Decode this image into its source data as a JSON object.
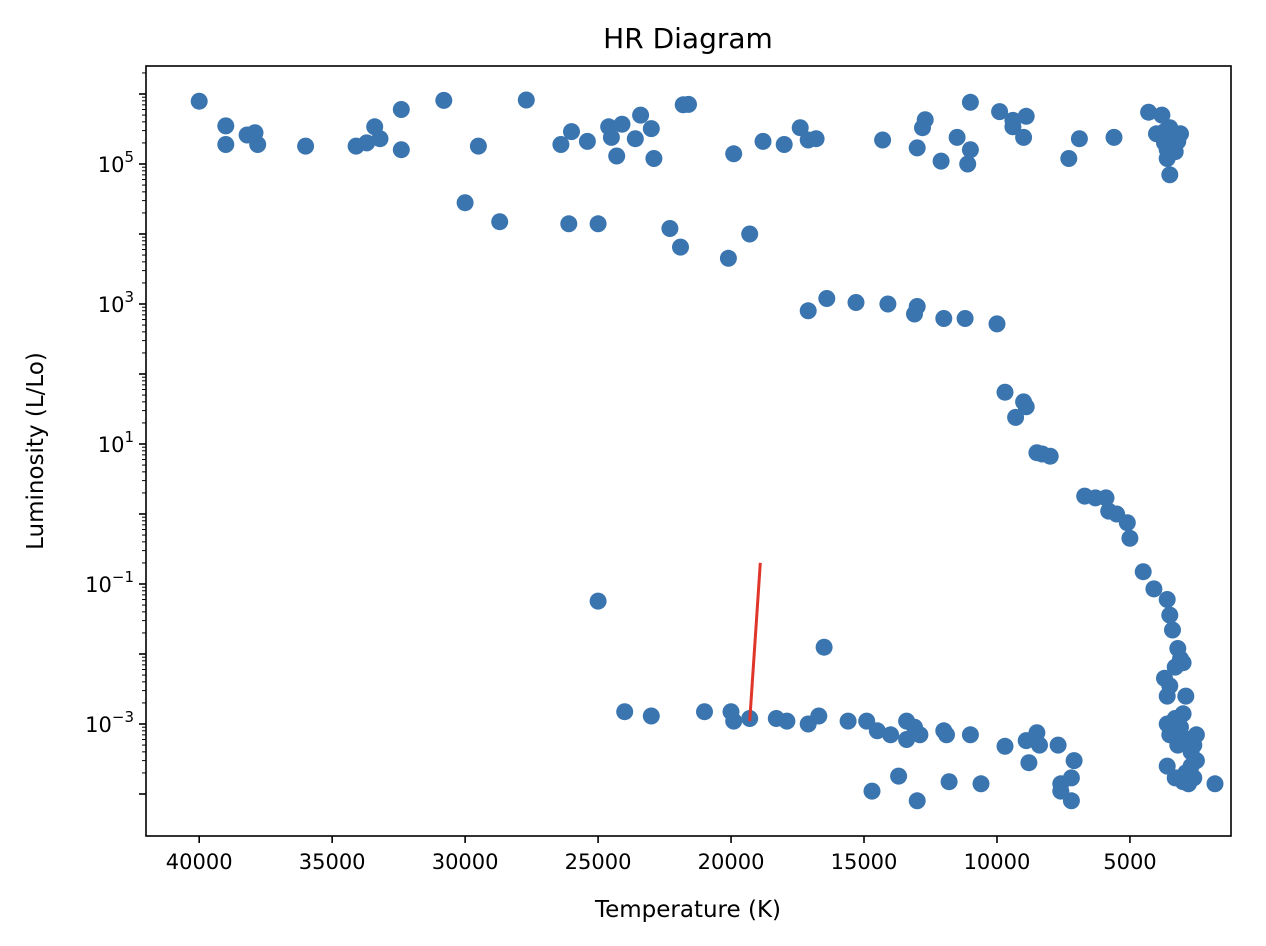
{
  "chart_data": {
    "type": "scatter",
    "title": "HR Diagram",
    "xlabel": "Temperature (K)",
    "ylabel": "Luminosity (L/Lo)",
    "x_inverted": true,
    "xlim": [
      42000,
      1200
    ],
    "y_scale": "log",
    "ylim_log10": [
      -4.6,
      6.4
    ],
    "grid": false,
    "x_ticks": [
      {
        "value": 40000,
        "label": "40000"
      },
      {
        "value": 35000,
        "label": "35000"
      },
      {
        "value": 30000,
        "label": "30000"
      },
      {
        "value": 25000,
        "label": "25000"
      },
      {
        "value": 20000,
        "label": "20000"
      },
      {
        "value": 15000,
        "label": "15000"
      },
      {
        "value": 10000,
        "label": "10000"
      },
      {
        "value": 5000,
        "label": "5000"
      }
    ],
    "y_ticks": [
      {
        "exp": 5,
        "base": "10",
        "sup": "5"
      },
      {
        "exp": 3,
        "base": "10",
        "sup": "3"
      },
      {
        "exp": 1,
        "base": "10",
        "sup": "1"
      },
      {
        "exp": -1,
        "base": "10",
        "sup": "−1"
      },
      {
        "exp": -3,
        "base": "10",
        "sup": "−3"
      }
    ],
    "marker_color": "#3a75b0",
    "line_color": "#e0352a",
    "line": {
      "x": [
        19300,
        18900
      ],
      "y": [
        0.0011,
        0.2
      ]
    },
    "points": [
      [
        40000,
        790000
      ],
      [
        39000,
        350000
      ],
      [
        39000,
        190000
      ],
      [
        38200,
        260000
      ],
      [
        37900,
        280000
      ],
      [
        37800,
        190000
      ],
      [
        36000,
        180000
      ],
      [
        34100,
        180000
      ],
      [
        33700,
        200000
      ],
      [
        33400,
        340000
      ],
      [
        33200,
        230000
      ],
      [
        32400,
        600000
      ],
      [
        32400,
        160000
      ],
      [
        30800,
        810000
      ],
      [
        30000,
        28000
      ],
      [
        29500,
        180000
      ],
      [
        28700,
        15000
      ],
      [
        27700,
        820000
      ],
      [
        26400,
        190000
      ],
      [
        26100,
        14000
      ],
      [
        26000,
        290000
      ],
      [
        25400,
        210000
      ],
      [
        25000,
        14000
      ],
      [
        24600,
        340000
      ],
      [
        24500,
        240000
      ],
      [
        24300,
        130000
      ],
      [
        24100,
        370000
      ],
      [
        23600,
        230000
      ],
      [
        23400,
        500000
      ],
      [
        23000,
        320000
      ],
      [
        22900,
        120000
      ],
      [
        22300,
        12000
      ],
      [
        21900,
        6500
      ],
      [
        21800,
        700000
      ],
      [
        21600,
        710000
      ],
      [
        20100,
        4500
      ],
      [
        19900,
        140000
      ],
      [
        19300,
        10000
      ],
      [
        18800,
        210000
      ],
      [
        18000,
        190000
      ],
      [
        17400,
        330000
      ],
      [
        17100,
        220000
      ],
      [
        16800,
        230000
      ],
      [
        17100,
        800
      ],
      [
        16400,
        1200
      ],
      [
        15300,
        1050
      ],
      [
        14300,
        220000
      ],
      [
        14100,
        1000
      ],
      [
        13000,
        170000
      ],
      [
        13100,
        720
      ],
      [
        13000,
        920
      ],
      [
        12800,
        330000
      ],
      [
        12700,
        430000
      ],
      [
        12100,
        110000
      ],
      [
        11500,
        240000
      ],
      [
        12000,
        620
      ],
      [
        11200,
        620
      ],
      [
        11000,
        760000
      ],
      [
        11000,
        160000
      ],
      [
        11100,
        100000
      ],
      [
        10000,
        520
      ],
      [
        9900,
        560000
      ],
      [
        9400,
        420000
      ],
      [
        9400,
        340000
      ],
      [
        9000,
        240000
      ],
      [
        8900,
        480000
      ],
      [
        9700,
        55
      ],
      [
        9300,
        24
      ],
      [
        9000,
        40
      ],
      [
        8900,
        34
      ],
      [
        8500,
        7.5
      ],
      [
        8300,
        7.2
      ],
      [
        8000,
        6.7
      ],
      [
        7300,
        120000
      ],
      [
        6900,
        230000
      ],
      [
        6700,
        1.8
      ],
      [
        6300,
        1.7
      ],
      [
        5900,
        1.7
      ],
      [
        5800,
        1.1
      ],
      [
        5600,
        240000
      ],
      [
        5500,
        1.0
      ],
      [
        5100,
        0.75
      ],
      [
        5000,
        0.45
      ],
      [
        4500,
        0.15
      ],
      [
        4100,
        0.085
      ],
      [
        4300,
        550000
      ],
      [
        4000,
        270000
      ],
      [
        3800,
        500000
      ],
      [
        3700,
        290000
      ],
      [
        3700,
        200000
      ],
      [
        3600,
        160000
      ],
      [
        3600,
        120000
      ],
      [
        3500,
        70000
      ],
      [
        3500,
        330000
      ],
      [
        3400,
        250000
      ],
      [
        3300,
        150000
      ],
      [
        3200,
        210000
      ],
      [
        3100,
        270000
      ],
      [
        3600,
        0.06
      ],
      [
        3500,
        0.036
      ],
      [
        3400,
        0.022
      ],
      [
        3200,
        0.012
      ],
      [
        3100,
        0.0085
      ],
      [
        3700,
        0.0045
      ],
      [
        3600,
        0.0025
      ],
      [
        3500,
        0.0035
      ],
      [
        3300,
        0.0065
      ],
      [
        3000,
        0.0075
      ],
      [
        2900,
        0.0025
      ],
      [
        3000,
        0.0014
      ],
      [
        3600,
        0.001
      ],
      [
        3500,
        0.0007
      ],
      [
        3400,
        0.0008
      ],
      [
        3300,
        0.0012
      ],
      [
        3200,
        0.0005
      ],
      [
        3100,
        0.0009
      ],
      [
        3000,
        0.0006
      ],
      [
        2800,
        0.0006
      ],
      [
        2700,
        0.0004
      ],
      [
        2600,
        0.0005
      ],
      [
        2500,
        0.0003
      ],
      [
        2500,
        0.0007
      ],
      [
        2700,
        0.00025
      ],
      [
        2900,
        0.0002
      ],
      [
        3100,
        0.00017
      ],
      [
        3300,
        0.00017
      ],
      [
        3600,
        0.00025
      ],
      [
        3000,
        0.00015
      ],
      [
        2800,
        0.00014
      ],
      [
        2600,
        0.00017
      ],
      [
        1800,
        0.00014
      ],
      [
        25000,
        0.057
      ],
      [
        16500,
        0.0125
      ],
      [
        24000,
        0.0015
      ],
      [
        23000,
        0.0013
      ],
      [
        21000,
        0.0015
      ],
      [
        20000,
        0.0015
      ],
      [
        19900,
        0.0011
      ],
      [
        19300,
        0.0012
      ],
      [
        18300,
        0.0012
      ],
      [
        17900,
        0.0011
      ],
      [
        17100,
        0.001
      ],
      [
        16700,
        0.0013
      ],
      [
        15600,
        0.0011
      ],
      [
        14900,
        0.0011
      ],
      [
        14500,
        0.0008
      ],
      [
        14000,
        0.0007
      ],
      [
        13400,
        0.0011
      ],
      [
        13400,
        0.0006
      ],
      [
        13100,
        0.0009
      ],
      [
        12900,
        0.0007
      ],
      [
        12000,
        0.0008
      ],
      [
        11900,
        0.0007
      ],
      [
        11000,
        0.0007
      ],
      [
        9700,
        0.00048
      ],
      [
        8900,
        0.00058
      ],
      [
        8800,
        0.00028
      ],
      [
        8500,
        0.00075
      ],
      [
        8400,
        0.0005
      ],
      [
        7700,
        0.0005
      ],
      [
        7100,
        0.0003
      ],
      [
        7600,
        0.00014
      ],
      [
        7600,
        0.00011
      ],
      [
        7200,
        0.00017
      ],
      [
        7200,
        8e-05
      ],
      [
        14700,
        0.00011
      ],
      [
        13700,
        0.00018
      ],
      [
        13000,
        8e-05
      ],
      [
        11800,
        0.00015
      ],
      [
        10600,
        0.00014
      ]
    ]
  }
}
